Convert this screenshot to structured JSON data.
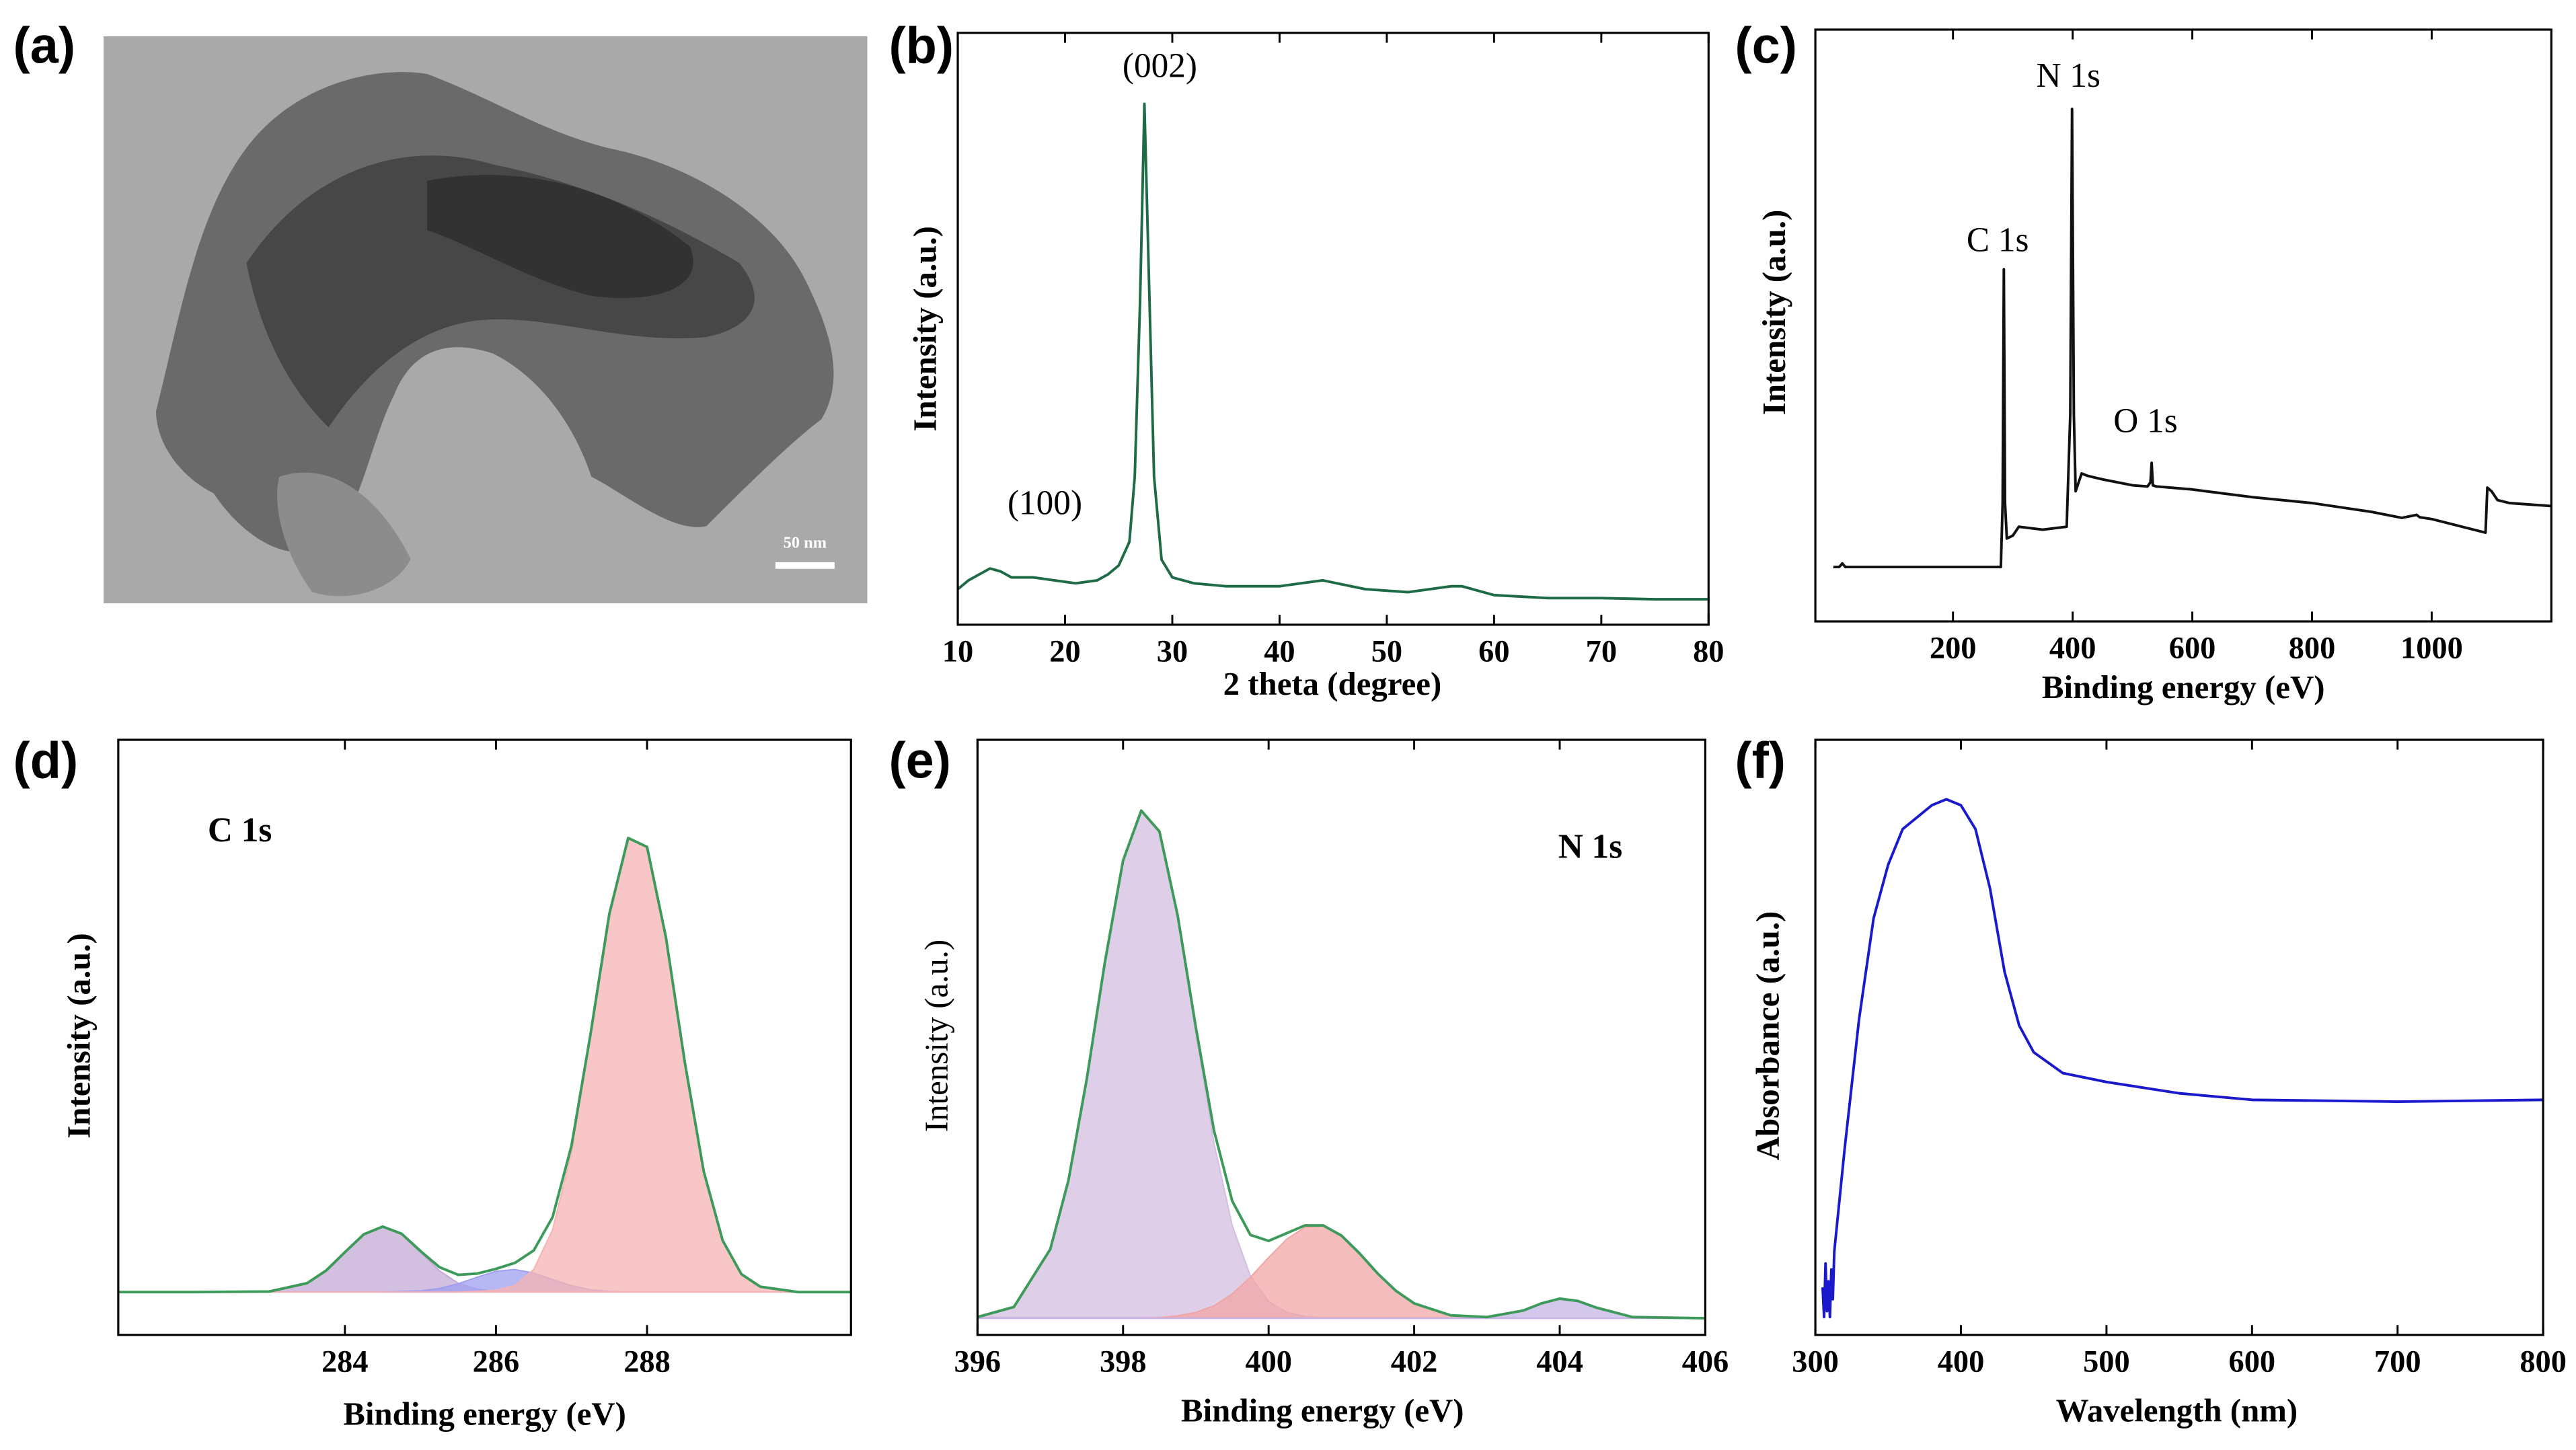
{
  "chart_data": [
    {
      "type": "image",
      "label": "(a)",
      "scale_bar": "50 nm"
    },
    {
      "type": "line",
      "label": "(b)",
      "xlabel": "2 theta (degree)",
      "ylabel": "Intensity (a.u.)",
      "annotations": [
        "(002)",
        "(100)"
      ],
      "xlim": [
        10,
        80
      ],
      "xticks": [
        10,
        20,
        30,
        40,
        50,
        60,
        70,
        80
      ],
      "ylim": [
        0,
        100
      ],
      "x": [
        10,
        11,
        12,
        13,
        14,
        15,
        17,
        19,
        21,
        23,
        24,
        25,
        26,
        26.5,
        27,
        27.4,
        27.8,
        28.3,
        29,
        30,
        32,
        35,
        40,
        44,
        48,
        52,
        56,
        57,
        60,
        65,
        70,
        75,
        80
      ],
      "series": [
        {
          "color": "#1e6b45",
          "fill": false,
          "values": [
            6,
            7.5,
            8.5,
            9.5,
            9,
            8,
            8,
            7.5,
            7,
            7.5,
            8.5,
            10,
            14,
            25,
            55,
            88,
            60,
            25,
            11,
            8,
            7,
            6.5,
            6.5,
            7.5,
            6,
            5.5,
            6.5,
            6.5,
            5,
            4.5,
            4.5,
            4.3,
            4.3
          ]
        }
      ]
    },
    {
      "type": "line",
      "label": "(c)",
      "xlabel": "Binding energy (eV)",
      "ylabel": "Intensity (a.u.)",
      "annotations": [
        "N 1s",
        "C 1s",
        "O 1s"
      ],
      "xlim": [
        -30,
        1200
      ],
      "xticks": [
        200,
        400,
        600,
        800,
        1000
      ],
      "ylim": [
        0,
        100
      ],
      "x": [
        0,
        10,
        15,
        20,
        100,
        200,
        280,
        283,
        285,
        287,
        290,
        300,
        310,
        350,
        390,
        396,
        399,
        402,
        405,
        415,
        425,
        450,
        500,
        525,
        530,
        532,
        534,
        540,
        600,
        700,
        800,
        900,
        950,
        975,
        980,
        1000,
        1090,
        1093,
        1100,
        1110,
        1130,
        1200
      ],
      "series": [
        {
          "color": "#111111",
          "fill": false,
          "values": [
            9.2,
            9.2,
            9.8,
            9.2,
            9.2,
            9.2,
            9.2,
            20,
            59.5,
            20,
            14,
            14.5,
            16,
            15.5,
            16,
            35,
            86.6,
            35,
            22,
            25,
            24.6,
            24,
            23,
            22.8,
            23.5,
            26.8,
            23,
            22.8,
            22.3,
            21,
            20,
            18.5,
            17.5,
            18,
            17.6,
            17.3,
            15,
            22.6,
            22,
            20.5,
            20,
            19.5
          ]
        }
      ]
    },
    {
      "type": "line",
      "label": "(d)",
      "xlabel": "Binding energy (eV)",
      "ylabel": "Intensity (a.u.)",
      "annotations": [
        "C 1s"
      ],
      "xlim": [
        281,
        290.7
      ],
      "xticks": [
        284,
        286,
        288
      ],
      "ylim": [
        0,
        100
      ],
      "x": [
        281,
        282,
        283,
        283.5,
        283.75,
        284,
        284.25,
        284.5,
        284.75,
        285,
        285.25,
        285.5,
        285.75,
        286,
        286.25,
        286.5,
        286.75,
        287,
        287.25,
        287.5,
        287.75,
        288,
        288.25,
        288.5,
        288.75,
        289,
        289.25,
        289.5,
        290,
        290.7
      ],
      "series": [
        {
          "color": "#c4aad6",
          "fill": true,
          "values": [
            7.2,
            7.2,
            7.3,
            8.7,
            10.8,
            13.9,
            16.9,
            18.2,
            16.9,
            13.9,
            10.8,
            8.7,
            7.7,
            7.3,
            7.2,
            7.2,
            7.2,
            7.2,
            7.2,
            7.2,
            7.2,
            7.2,
            7.2,
            7.2,
            7.2,
            7.2,
            7.2,
            7.2,
            7.2,
            7.2
          ]
        },
        {
          "color": "#9f9ff0",
          "fill": true,
          "values": [
            7.2,
            7.2,
            7.2,
            7.2,
            7.2,
            7.2,
            7.2,
            7.2,
            7.3,
            7.4,
            7.8,
            8.6,
            9.7,
            10.7,
            11.0,
            10.4,
            9.3,
            8.3,
            7.6,
            7.3,
            7.2,
            7.2,
            7.2,
            7.2,
            7.2,
            7.2,
            7.2,
            7.2,
            7.2,
            7.2
          ]
        },
        {
          "color": "#f5b3b3",
          "fill": true,
          "values": [
            7.2,
            7.2,
            7.2,
            7.2,
            7.2,
            7.2,
            7.2,
            7.2,
            7.2,
            7.2,
            7.2,
            7.2,
            7.3,
            7.5,
            8.3,
            11.0,
            17.7,
            30.7,
            50.0,
            70.6,
            83.5,
            82.0,
            66.8,
            45.8,
            27.5,
            15.9,
            10.2,
            8.1,
            7.2,
            7.2
          ]
        },
        {
          "color": "#3d9a5a",
          "fill": false,
          "values": [
            7.2,
            7.2,
            7.3,
            8.7,
            10.8,
            13.9,
            16.9,
            18.2,
            17.0,
            14.1,
            11.4,
            10.1,
            10.3,
            11.1,
            12.1,
            14.2,
            19.8,
            31.8,
            50.4,
            70.7,
            83.5,
            82.0,
            66.8,
            45.8,
            27.5,
            15.9,
            10.2,
            8.1,
            7.2,
            7.2
          ]
        }
      ]
    },
    {
      "type": "line",
      "label": "(e)",
      "xlabel": "Binding energy (eV)",
      "ylabel": "Intensity (a.u.)",
      "annotations": [
        "N 1s"
      ],
      "xlim": [
        396,
        406
      ],
      "xticks": [
        396,
        398,
        400,
        402,
        404,
        406
      ],
      "ylim": [
        0,
        100
      ],
      "x": [
        396,
        396.5,
        397,
        397.25,
        397.5,
        397.75,
        398,
        398.25,
        398.5,
        398.75,
        399,
        399.25,
        399.5,
        399.75,
        400,
        400.25,
        400.5,
        400.75,
        401,
        401.25,
        401.5,
        401.75,
        402,
        402.5,
        403,
        403.5,
        403.75,
        404,
        404.25,
        404.5,
        405,
        406
      ],
      "series": [
        {
          "color": "#d3bde0",
          "fill": true,
          "values": [
            3.0,
            4.7,
            14.4,
            26.0,
            42.9,
            62.6,
            79.7,
            88.1,
            84.5,
            70.1,
            50.7,
            32.2,
            18.4,
            9.9,
            5.6,
            3.8,
            3.1,
            2.9,
            2.8,
            2.8,
            2.8,
            2.8,
            2.8,
            2.8,
            2.8,
            2.8,
            2.8,
            2.8,
            2.8,
            2.8,
            2.8,
            2.8
          ]
        },
        {
          "color": "#f0a5a5",
          "fill": true,
          "values": [
            2.8,
            2.8,
            2.8,
            2.8,
            2.8,
            2.8,
            2.8,
            2.8,
            2.9,
            3.2,
            3.8,
            4.9,
            6.9,
            9.7,
            13.0,
            16.1,
            18.1,
            18.3,
            16.7,
            13.7,
            10.3,
            7.4,
            5.3,
            3.3,
            2.9,
            2.8,
            2.8,
            2.8,
            2.8,
            2.8,
            2.8,
            2.8
          ]
        },
        {
          "color": "#c4b4e6",
          "fill": true,
          "values": [
            2.8,
            2.8,
            2.8,
            2.8,
            2.8,
            2.8,
            2.8,
            2.8,
            2.8,
            2.8,
            2.8,
            2.8,
            2.8,
            2.8,
            2.8,
            2.8,
            2.8,
            2.8,
            2.8,
            2.8,
            2.8,
            2.8,
            2.8,
            2.8,
            2.9,
            4.1,
            5.3,
            6.1,
            5.7,
            4.6,
            3.0,
            2.8
          ]
        },
        {
          "color": "#3d9a5a",
          "fill": false,
          "values": [
            3.0,
            4.7,
            14.4,
            26.0,
            42.9,
            62.6,
            79.7,
            88.1,
            84.6,
            70.5,
            51.7,
            34.3,
            22.5,
            16.8,
            15.8,
            17.1,
            18.4,
            18.4,
            16.7,
            13.7,
            10.3,
            7.4,
            5.3,
            3.3,
            3.0,
            4.1,
            5.3,
            6.1,
            5.7,
            4.6,
            3.0,
            2.8
          ]
        }
      ]
    },
    {
      "type": "line",
      "label": "(f)",
      "xlabel": "Wavelength (nm)",
      "ylabel": "Absorbance (a.u.)",
      "annotations": [],
      "xlim": [
        300,
        800
      ],
      "xticks": [
        300,
        400,
        500,
        600,
        700,
        800
      ],
      "ylim": [
        0,
        100
      ],
      "x": [
        305,
        306,
        307,
        308,
        309,
        310,
        311,
        312,
        313,
        320,
        330,
        340,
        350,
        360,
        380,
        390,
        400,
        410,
        420,
        430,
        440,
        450,
        470,
        500,
        550,
        600,
        700,
        800
      ],
      "series": [
        {
          "color": "#1a1acc",
          "fill": false,
          "values": [
            8,
            3,
            12,
            4,
            9,
            3,
            11,
            6,
            14,
            31,
            53,
            70,
            79,
            85,
            89,
            90,
            89,
            85,
            75,
            61,
            52,
            47.5,
            44,
            42.5,
            40.6,
            39.5,
            39.2,
            39.5
          ]
        }
      ]
    }
  ]
}
